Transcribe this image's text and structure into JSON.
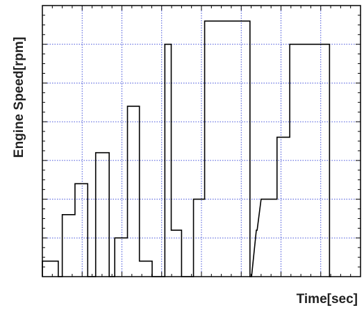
{
  "chart_data": {
    "type": "line",
    "title": "",
    "xlabel": "Time[sec]",
    "ylabel": "Engine Speed[rpm]",
    "grid": true,
    "xlim": [
      0,
      20
    ],
    "ylim": [
      0,
      7
    ],
    "series": [
      {
        "name": "",
        "x": [
          0.0,
          0.0,
          1.0,
          1.0,
          1.25,
          1.25,
          2.05,
          2.05,
          2.85,
          2.85,
          3.35,
          3.35,
          4.2,
          4.2,
          4.55,
          4.55,
          5.35,
          5.35,
          6.1,
          6.1,
          6.9,
          6.9,
          7.7,
          7.7,
          8.1,
          8.1,
          8.75,
          8.75,
          9.5,
          9.5,
          10.2,
          10.2,
          10.6,
          11.65,
          13.05,
          13.05,
          13.15,
          13.15,
          13.45,
          13.5,
          13.75,
          13.75,
          14.75,
          14.75,
          15.55,
          15.55,
          16.75,
          16.75,
          18.05,
          18.05,
          18.15
        ],
        "y": [
          0.0,
          0.4,
          0.4,
          0.0,
          0.0,
          1.6,
          1.6,
          2.4,
          2.4,
          0.0,
          0.0,
          3.2,
          3.2,
          0.0,
          0.0,
          1.0,
          1.0,
          4.4,
          4.4,
          0.4,
          0.4,
          0.0,
          0.0,
          6.0,
          6.0,
          1.2,
          1.2,
          0.0,
          0.0,
          2.0,
          2.0,
          6.6,
          6.6,
          6.6,
          6.6,
          0.0,
          0.0,
          0.0,
          1.2,
          1.2,
          2.0,
          2.0,
          2.0,
          3.6,
          3.6,
          6.0,
          6.0,
          6.0,
          6.0,
          0.0,
          0.0
        ]
      }
    ]
  }
}
